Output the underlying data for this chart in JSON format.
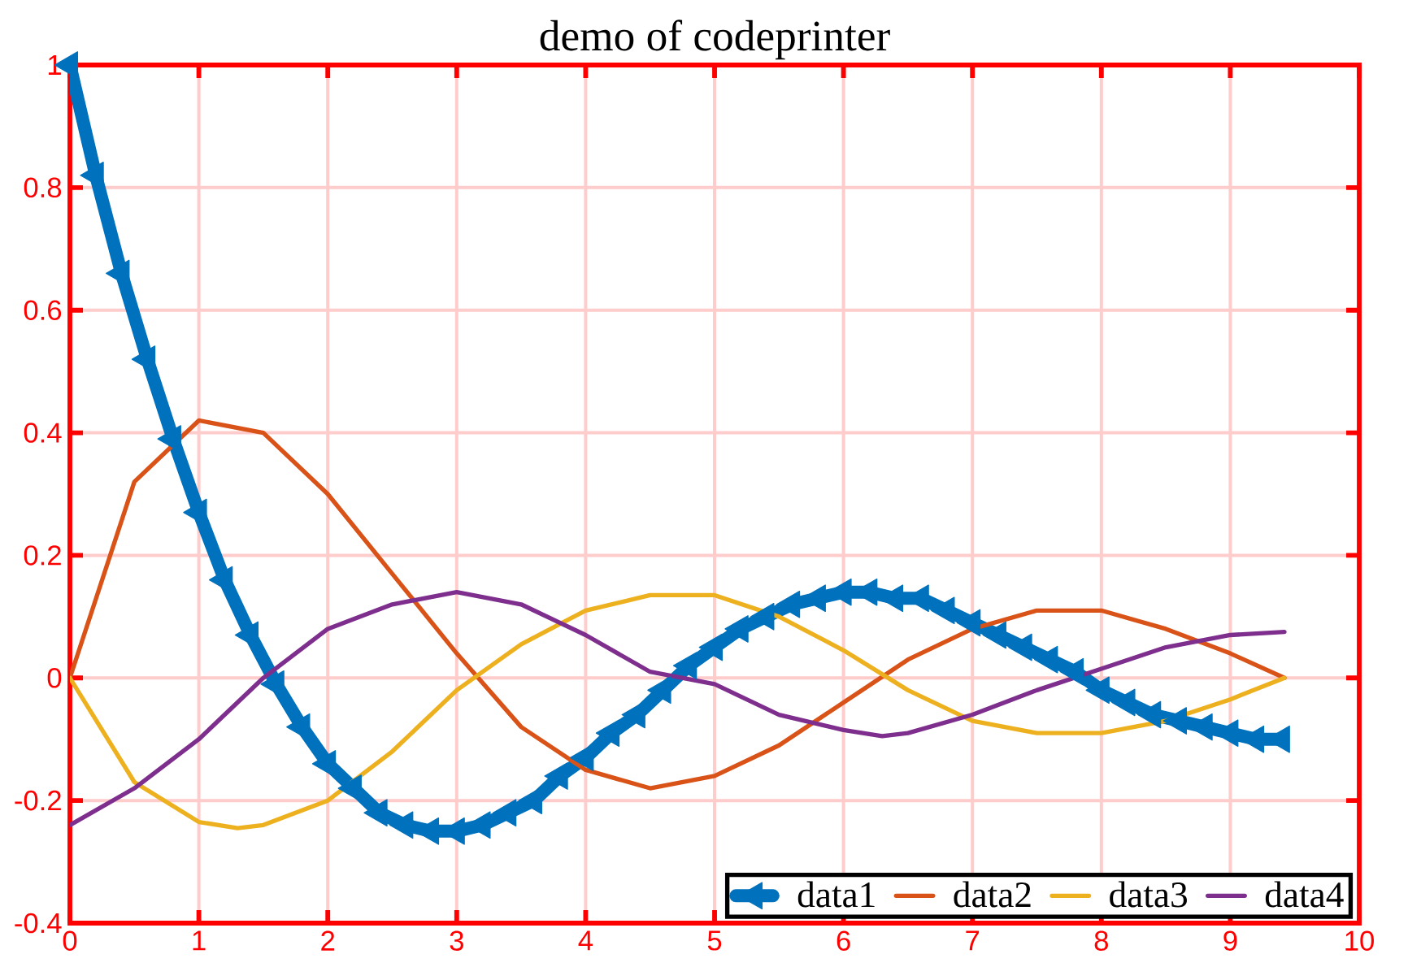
{
  "chart_data": {
    "type": "line",
    "title": "demo of codeprinter",
    "xlim": [
      0,
      10
    ],
    "ylim": [
      -0.4,
      1
    ],
    "xticks": [
      0,
      1,
      2,
      3,
      4,
      5,
      6,
      7,
      8,
      9,
      10
    ],
    "yticks": [
      -0.4,
      -0.2,
      0,
      0.2,
      0.4,
      0.6,
      0.8,
      1
    ],
    "grid": true,
    "legend": "bottom right",
    "series": [
      {
        "name": "data1",
        "color": "#0072bd",
        "marker": "triangle",
        "x": [
          0,
          0.2,
          0.4,
          0.6,
          0.8,
          1.0,
          1.2,
          1.4,
          1.6,
          1.8,
          2.0,
          2.2,
          2.4,
          2.6,
          2.8,
          3.0,
          3.2,
          3.4,
          3.6,
          3.8,
          4.0,
          4.2,
          4.4,
          4.6,
          4.8,
          5.0,
          5.2,
          5.4,
          5.6,
          5.8,
          6.0,
          6.2,
          6.4,
          6.6,
          6.8,
          7.0,
          7.2,
          7.4,
          7.6,
          7.8,
          8.0,
          8.2,
          8.4,
          8.6,
          8.8,
          9.0,
          9.2,
          9.4
        ],
        "values": [
          1.0,
          0.82,
          0.66,
          0.52,
          0.39,
          0.27,
          0.16,
          0.07,
          -0.01,
          -0.08,
          -0.14,
          -0.18,
          -0.22,
          -0.24,
          -0.25,
          -0.25,
          -0.24,
          -0.22,
          -0.2,
          -0.16,
          -0.13,
          -0.09,
          -0.06,
          -0.02,
          0.02,
          0.05,
          0.08,
          0.1,
          0.12,
          0.13,
          0.14,
          0.14,
          0.13,
          0.13,
          0.11,
          0.09,
          0.07,
          0.05,
          0.03,
          0.01,
          -0.02,
          -0.04,
          -0.06,
          -0.07,
          -0.08,
          -0.09,
          -0.1,
          -0.1
        ]
      },
      {
        "name": "data2",
        "color": "#d95319",
        "x": [
          0,
          0.5,
          1.0,
          1.5,
          2.0,
          2.5,
          3.0,
          3.5,
          4.0,
          4.5,
          5.0,
          5.5,
          6.0,
          6.5,
          7.0,
          7.5,
          8.0,
          8.5,
          9.0,
          9.42
        ],
        "values": [
          0,
          0.32,
          0.42,
          0.4,
          0.3,
          0.17,
          0.04,
          -0.08,
          -0.15,
          -0.18,
          -0.16,
          -0.11,
          -0.04,
          0.03,
          0.08,
          0.11,
          0.11,
          0.08,
          0.04,
          0
        ]
      },
      {
        "name": "data3",
        "color": "#edb120",
        "x": [
          0,
          0.5,
          1.0,
          1.3,
          1.5,
          2.0,
          2.5,
          3.0,
          3.5,
          4.0,
          4.5,
          5.0,
          5.5,
          6.0,
          6.5,
          7.0,
          7.5,
          8.0,
          8.5,
          9.0,
          9.42
        ],
        "values": [
          0,
          -0.17,
          -0.235,
          -0.245,
          -0.24,
          -0.2,
          -0.12,
          -0.02,
          0.055,
          0.11,
          0.135,
          0.135,
          0.1,
          0.045,
          -0.02,
          -0.07,
          -0.09,
          -0.09,
          -0.07,
          -0.035,
          0
        ]
      },
      {
        "name": "data4",
        "color": "#7e2f8e",
        "x": [
          0,
          0.5,
          1.0,
          1.5,
          2.0,
          2.5,
          3.0,
          3.5,
          4.0,
          4.5,
          5.0,
          5.5,
          6.0,
          6.3,
          6.5,
          7.0,
          7.5,
          8.0,
          8.5,
          9.0,
          9.42
        ],
        "values": [
          -0.24,
          -0.18,
          -0.1,
          0.0,
          0.08,
          0.12,
          0.14,
          0.12,
          0.07,
          0.01,
          -0.01,
          -0.06,
          -0.085,
          -0.095,
          -0.09,
          -0.06,
          -0.02,
          0.015,
          0.05,
          0.07,
          0.075
        ]
      }
    ]
  }
}
